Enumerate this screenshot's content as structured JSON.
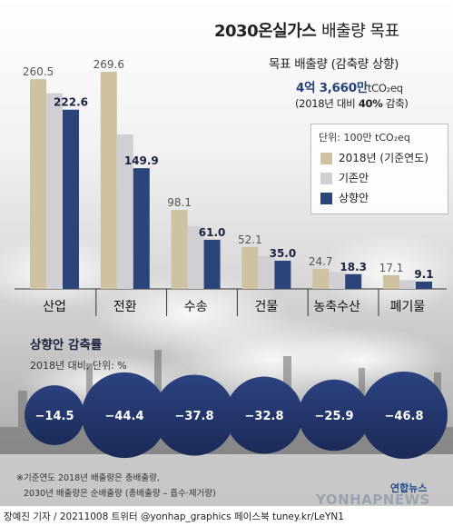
{
  "title_main": "2030온실가스",
  "title_light": "배출량 목표",
  "target": {
    "label": "목표 배출량 (감축량 상향)",
    "value": "4억 3,660만",
    "unit": "tCO₂eq",
    "compare_prefix": "(2018년 대비",
    "compare_bold": "40%",
    "compare_suffix": "감축)"
  },
  "unit_label": "단위: 100만 tCO₂eq",
  "colors": {
    "2018": "#cfc2a0",
    "existing": "#d0d0d4",
    "raised": "#2b4479",
    "circle": "#22346b"
  },
  "chart_data": {
    "type": "bar",
    "categories": [
      "산업",
      "전환",
      "수송",
      "건물",
      "농축수산",
      "폐기물"
    ],
    "series": [
      {
        "name": "2018년 (기준연도)",
        "values": [
          260.5,
          269.6,
          98.1,
          52.1,
          24.7,
          17.1
        ],
        "labels": [
          "260.5",
          "269.6",
          "98.1",
          "52.1",
          "24.7",
          "17.1"
        ]
      },
      {
        "name": "기존안",
        "values": [
          243.0,
          192.0,
          78.0,
          41.0,
          21.0,
          11.0
        ],
        "labels": [
          "",
          "",
          "",
          "",
          "",
          ""
        ]
      },
      {
        "name": "상향안",
        "values": [
          222.6,
          149.9,
          61.0,
          35.0,
          18.3,
          9.1
        ],
        "labels": [
          "222.6",
          "149.9",
          "61.0",
          "35.0",
          "18.3",
          "9.1"
        ]
      }
    ],
    "ylim": [
      0,
      290
    ],
    "legend": "right",
    "grid": false
  },
  "reduction": {
    "title": "상향안 감축률",
    "subtitle": "2018년 대비, 단위: %",
    "values": [
      -14.5,
      -44.4,
      -37.8,
      -32.8,
      -25.9,
      -46.8
    ],
    "labels": [
      "−14.5",
      "−44.4",
      "−37.8",
      "−32.8",
      "−25.9",
      "−46.8"
    ]
  },
  "footnotes": [
    "※기준연도 2018년 배출량은 총배출량,",
    "2030년 배출량은 순배출량 (총배출량 – 흡수·제거량)"
  ],
  "credit": "장예진 기자 / 20211008 트위터 @yonhap_graphics 페이스북 tuney.kr/LeYN1",
  "brand": {
    "logo_text": "연합뉴스",
    "watermark": "YONHAPNEWS"
  }
}
